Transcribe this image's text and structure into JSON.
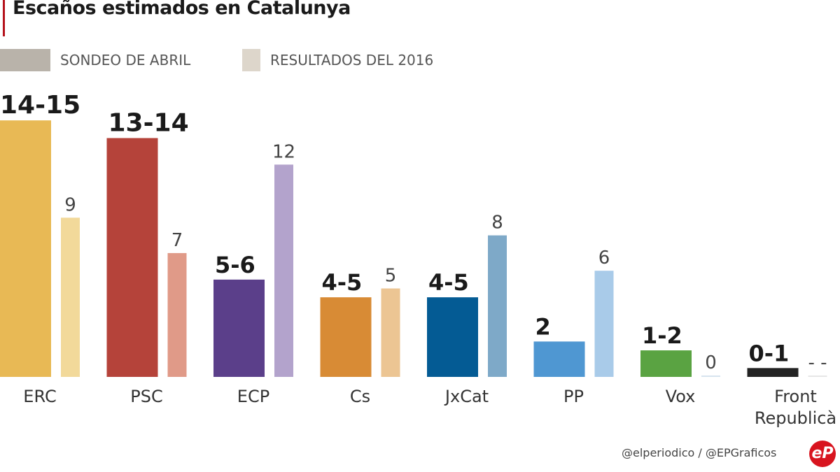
{
  "chart_data": {
    "type": "bar",
    "title": "Escaños estimados en Catalunya",
    "xlabel": "",
    "ylabel": "",
    "ylim": [
      0,
      15
    ],
    "grid": false,
    "legend_position": "top-left",
    "categories": [
      "ERC",
      "PSC",
      "ECP",
      "Cs",
      "JxCat",
      "PP",
      "Vox",
      "Front Republicà"
    ],
    "series": [
      {
        "name": "SONDEO DE ABRIL",
        "labels": [
          "14-15",
          "13-14",
          "5-6",
          "4-5",
          "4-5",
          "2",
          "1-2",
          "0-1"
        ],
        "values": [
          14.5,
          13.5,
          5.5,
          4.5,
          4.5,
          2,
          1.5,
          0.5
        ],
        "colors": [
          "#e8b955",
          "#b5433a",
          "#5b3f8a",
          "#d88b35",
          "#045b94",
          "#4f97d2",
          "#5aa342",
          "#232323"
        ]
      },
      {
        "name": "RESULTADOS DEL 2016",
        "labels": [
          "9",
          "7",
          "12",
          "5",
          "8",
          "6",
          "0",
          "- -"
        ],
        "values": [
          9,
          7,
          12,
          5,
          8,
          6,
          0,
          0
        ],
        "colors": [
          "#f2d99a",
          "#e09a88",
          "#b3a3cc",
          "#ecc593",
          "#7ea9c8",
          "#a9cbe9",
          "#d6e3ee",
          "#e6e6e6"
        ]
      }
    ]
  },
  "legend": {
    "items": [
      {
        "label": "SONDEO DE ABRIL",
        "color": "#b9b3aa"
      },
      {
        "label": "RESULTADOS DEL 2016",
        "color": "#ddd6cb"
      }
    ]
  },
  "footer": {
    "credit": "@elperiodico / @EPGraficos",
    "logo": "eP"
  }
}
